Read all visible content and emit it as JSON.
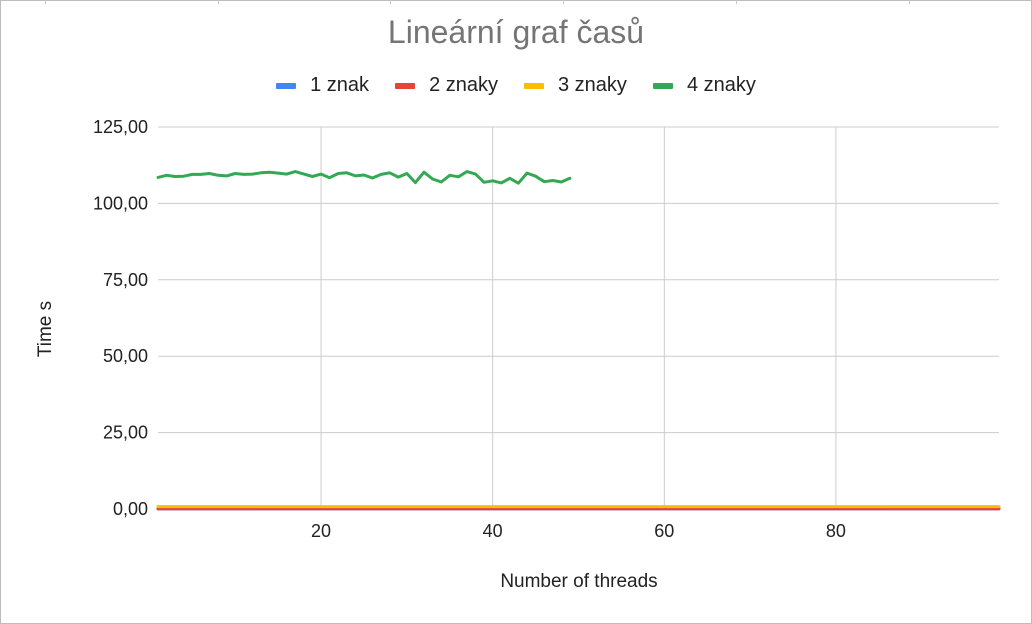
{
  "chart_data": {
    "type": "line",
    "title": "Lineární graf časů",
    "xlabel": "Number of threads",
    "ylabel": "Time s",
    "xlim": [
      1,
      99
    ],
    "ylim": [
      0,
      125
    ],
    "x_ticks": [
      20,
      40,
      60,
      80
    ],
    "y_ticks": [
      0,
      25,
      50,
      75,
      100,
      125
    ],
    "y_tick_labels": [
      "0,00",
      "25,00",
      "50,00",
      "75,00",
      "100,00",
      "125,00"
    ],
    "x_tick_labels": [
      "20",
      "40",
      "60",
      "80"
    ],
    "grid": true,
    "legend_position": "top",
    "series": [
      {
        "name": "1 znak",
        "color": "#4285f4",
        "x_start": 1,
        "x_end": 99,
        "constant_value": 0.02
      },
      {
        "name": "2 znaky",
        "color": "#ea4335",
        "x_start": 1,
        "x_end": 99,
        "constant_value": 0.1
      },
      {
        "name": "3 znaky",
        "color": "#fbbc04",
        "x_start": 1,
        "x_end": 99,
        "constant_value": 0.8
      },
      {
        "name": "4 znaky",
        "color": "#34a853",
        "x": [
          1,
          2,
          3,
          4,
          5,
          6,
          7,
          8,
          9,
          10,
          11,
          12,
          13,
          14,
          15,
          16,
          17,
          18,
          19,
          20,
          21,
          22,
          23,
          24,
          25,
          26,
          27,
          28,
          29,
          30,
          31,
          32,
          33,
          34,
          35,
          36,
          37,
          38,
          39,
          40,
          41,
          42,
          43,
          44,
          45,
          46,
          47,
          48,
          49
        ],
        "values": [
          108.5,
          109.2,
          108.8,
          108.9,
          109.5,
          109.5,
          109.8,
          109.2,
          109.0,
          109.8,
          109.5,
          109.6,
          110.0,
          110.2,
          109.9,
          109.6,
          110.4,
          109.6,
          108.8,
          109.6,
          108.4,
          109.8,
          110.0,
          109.0,
          109.3,
          108.3,
          109.5,
          110.0,
          108.6,
          109.8,
          106.8,
          110.2,
          108.0,
          107.0,
          109.2,
          108.7,
          110.4,
          109.6,
          106.9,
          107.4,
          106.7,
          108.2,
          106.6,
          109.9,
          108.9,
          107.1,
          107.5,
          107.0,
          108.2
        ]
      }
    ]
  }
}
